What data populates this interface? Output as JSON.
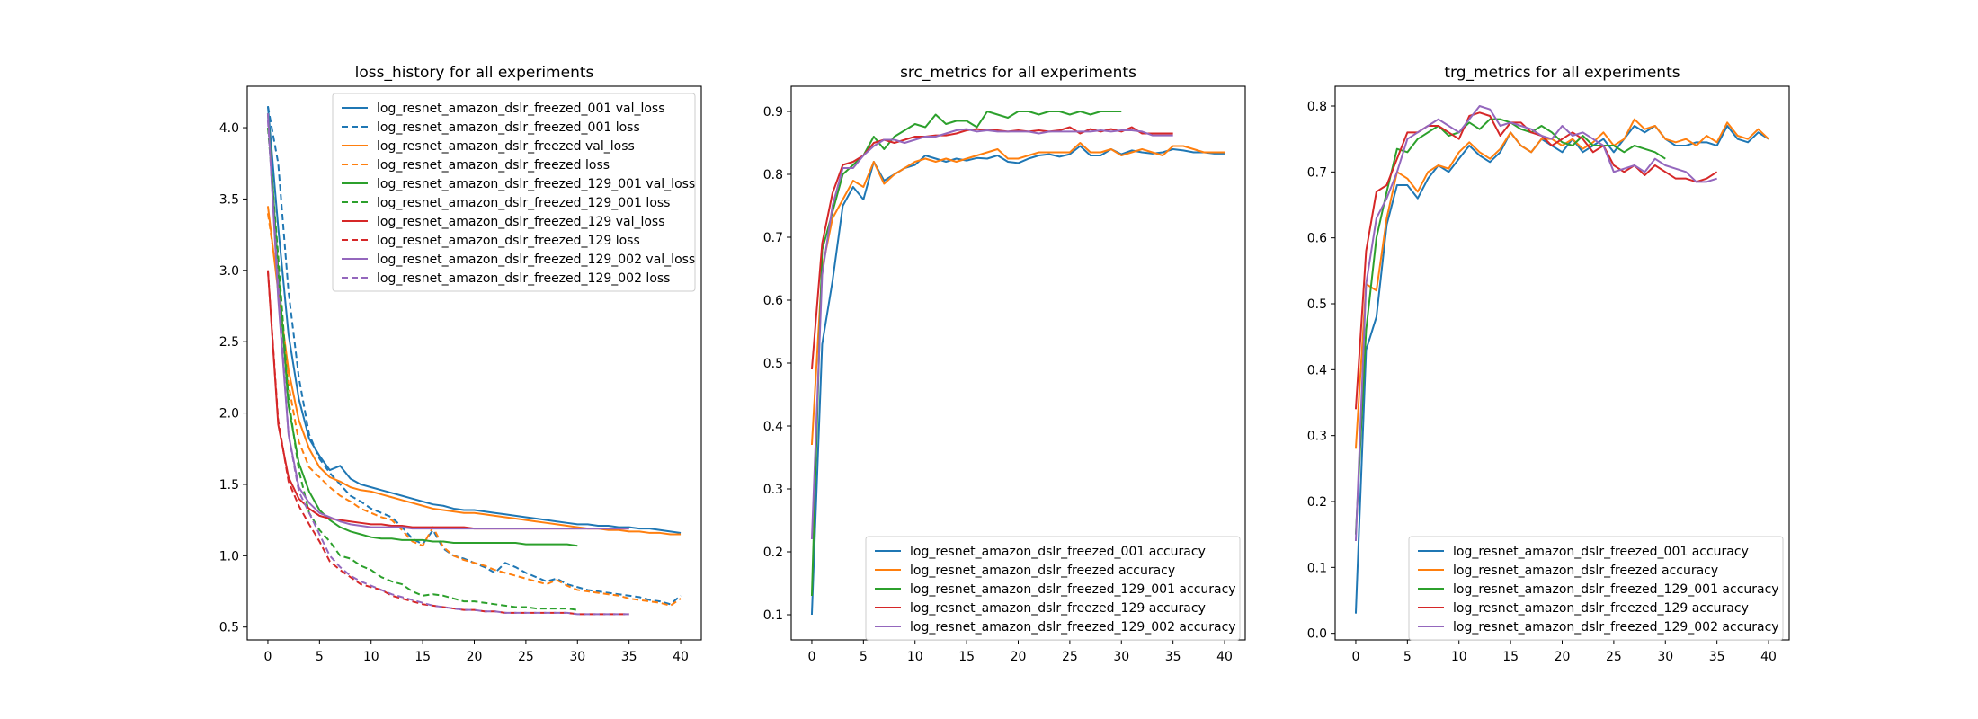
{
  "colors": {
    "blue": "#1f77b4",
    "orange": "#ff7f0e",
    "green": "#2ca02c",
    "red": "#d62728",
    "purple": "#9467bd"
  },
  "chart_data": [
    {
      "type": "line",
      "title": "loss_history for all experiments",
      "xlabel": "",
      "ylabel": "",
      "xlim": [
        -2,
        42
      ],
      "ylim": [
        0.41,
        4.29
      ],
      "xticks": [
        "0",
        "5",
        "10",
        "15",
        "20",
        "25",
        "30",
        "35",
        "40"
      ],
      "yticks": [
        "0.5",
        "1.0",
        "1.5",
        "2.0",
        "2.5",
        "3.0",
        "3.5",
        "4.0"
      ],
      "grid": false,
      "legend": "top-right",
      "series": [
        {
          "name": "log_resnet_amazon_dslr_freezed_001 val_loss",
          "color": "#1f77b4",
          "dash": false,
          "values": [
            4.15,
            3.3,
            2.55,
            2.1,
            1.82,
            1.7,
            1.6,
            1.63,
            1.54,
            1.5,
            1.48,
            1.46,
            1.44,
            1.42,
            1.4,
            1.38,
            1.36,
            1.35,
            1.33,
            1.32,
            1.32,
            1.31,
            1.3,
            1.29,
            1.28,
            1.27,
            1.26,
            1.25,
            1.24,
            1.23,
            1.22,
            1.22,
            1.21,
            1.21,
            1.2,
            1.2,
            1.19,
            1.19,
            1.18,
            1.17,
            1.16
          ]
        },
        {
          "name": "log_resnet_amazon_dslr_freezed_001 loss",
          "color": "#1f77b4",
          "dash": true,
          "values": [
            4.15,
            3.75,
            2.85,
            2.25,
            1.85,
            1.68,
            1.58,
            1.5,
            1.42,
            1.38,
            1.33,
            1.3,
            1.27,
            1.2,
            1.12,
            1.08,
            1.18,
            1.05,
            1.0,
            0.98,
            0.95,
            0.92,
            0.88,
            0.95,
            0.92,
            0.88,
            0.85,
            0.82,
            0.84,
            0.8,
            0.78,
            0.76,
            0.75,
            0.74,
            0.73,
            0.72,
            0.71,
            0.69,
            0.68,
            0.66,
            0.72
          ]
        },
        {
          "name": "log_resnet_amazon_dslr_freezed val_loss",
          "color": "#ff7f0e",
          "dash": false,
          "values": [
            3.45,
            2.85,
            2.3,
            1.95,
            1.75,
            1.62,
            1.55,
            1.52,
            1.48,
            1.46,
            1.45,
            1.43,
            1.41,
            1.39,
            1.37,
            1.35,
            1.33,
            1.32,
            1.31,
            1.3,
            1.3,
            1.29,
            1.28,
            1.27,
            1.26,
            1.25,
            1.24,
            1.23,
            1.22,
            1.21,
            1.2,
            1.19,
            1.19,
            1.18,
            1.18,
            1.17,
            1.17,
            1.16,
            1.16,
            1.15,
            1.15
          ]
        },
        {
          "name": "log_resnet_amazon_dslr_freezed loss",
          "color": "#ff7f0e",
          "dash": true,
          "values": [
            3.4,
            2.9,
            2.2,
            1.8,
            1.62,
            1.55,
            1.48,
            1.42,
            1.38,
            1.33,
            1.3,
            1.27,
            1.25,
            1.18,
            1.1,
            1.07,
            1.2,
            1.06,
            1.0,
            0.97,
            0.95,
            0.93,
            0.9,
            0.88,
            0.86,
            0.84,
            0.82,
            0.8,
            0.83,
            0.79,
            0.76,
            0.75,
            0.74,
            0.73,
            0.72,
            0.7,
            0.69,
            0.68,
            0.67,
            0.65,
            0.7
          ]
        },
        {
          "name": "log_resnet_amazon_dslr_freezed_129_001 val_loss",
          "color": "#2ca02c",
          "dash": false,
          "values": [
            4.1,
            3.0,
            2.05,
            1.65,
            1.45,
            1.32,
            1.25,
            1.2,
            1.17,
            1.15,
            1.13,
            1.12,
            1.12,
            1.11,
            1.11,
            1.11,
            1.1,
            1.1,
            1.09,
            1.09,
            1.09,
            1.09,
            1.09,
            1.09,
            1.09,
            1.08,
            1.08,
            1.08,
            1.08,
            1.08,
            1.07
          ]
        },
        {
          "name": "log_resnet_amazon_dslr_freezed_129_001 loss",
          "color": "#2ca02c",
          "dash": true,
          "values": [
            4.0,
            3.1,
            2.1,
            1.6,
            1.3,
            1.18,
            1.1,
            1.0,
            0.98,
            0.93,
            0.9,
            0.85,
            0.82,
            0.8,
            0.75,
            0.72,
            0.73,
            0.72,
            0.7,
            0.68,
            0.68,
            0.67,
            0.66,
            0.65,
            0.64,
            0.64,
            0.63,
            0.63,
            0.63,
            0.63,
            0.62
          ]
        },
        {
          "name": "log_resnet_amazon_dslr_freezed_129 val_loss",
          "color": "#d62728",
          "dash": false,
          "values": [
            3.0,
            1.92,
            1.55,
            1.4,
            1.33,
            1.28,
            1.26,
            1.25,
            1.24,
            1.23,
            1.22,
            1.22,
            1.21,
            1.21,
            1.2,
            1.2,
            1.2,
            1.2,
            1.2,
            1.2,
            1.19,
            1.19,
            1.19,
            1.19,
            1.19,
            1.19,
            1.19,
            1.19,
            1.19,
            1.19,
            1.19,
            1.19,
            1.19,
            1.19,
            1.19,
            1.19
          ]
        },
        {
          "name": "log_resnet_amazon_dslr_freezed_129 loss",
          "color": "#d62728",
          "dash": true,
          "values": [
            3.0,
            1.95,
            1.52,
            1.35,
            1.22,
            1.1,
            0.96,
            0.9,
            0.85,
            0.8,
            0.78,
            0.76,
            0.72,
            0.7,
            0.68,
            0.66,
            0.65,
            0.64,
            0.63,
            0.62,
            0.62,
            0.61,
            0.61,
            0.6,
            0.6,
            0.6,
            0.6,
            0.6,
            0.6,
            0.6,
            0.59,
            0.59,
            0.59,
            0.59,
            0.59,
            0.59
          ]
        },
        {
          "name": "log_resnet_amazon_dslr_freezed_129_002 val_loss",
          "color": "#9467bd",
          "dash": false,
          "values": [
            4.1,
            2.8,
            1.85,
            1.48,
            1.37,
            1.3,
            1.27,
            1.24,
            1.22,
            1.21,
            1.2,
            1.2,
            1.2,
            1.2,
            1.19,
            1.19,
            1.19,
            1.19,
            1.19,
            1.19,
            1.19,
            1.19,
            1.19,
            1.19,
            1.19,
            1.19,
            1.19,
            1.19,
            1.19,
            1.19,
            1.19,
            1.19,
            1.19,
            1.19,
            1.19,
            1.19
          ]
        },
        {
          "name": "log_resnet_amazon_dslr_freezed_129_002 loss",
          "color": "#9467bd",
          "dash": true,
          "values": [
            4.05,
            2.9,
            1.85,
            1.45,
            1.3,
            1.15,
            1.0,
            0.92,
            0.86,
            0.82,
            0.79,
            0.76,
            0.73,
            0.71,
            0.69,
            0.67,
            0.65,
            0.64,
            0.63,
            0.62,
            0.62,
            0.61,
            0.61,
            0.6,
            0.6,
            0.6,
            0.6,
            0.6,
            0.6,
            0.6,
            0.59,
            0.59,
            0.59,
            0.59,
            0.59,
            0.59
          ]
        }
      ]
    },
    {
      "type": "line",
      "title": "src_metrics for all experiments",
      "xlabel": "",
      "ylabel": "",
      "xlim": [
        -2,
        42
      ],
      "ylim": [
        0.06,
        0.94
      ],
      "xticks": [
        "0",
        "5",
        "10",
        "15",
        "20",
        "25",
        "30",
        "35",
        "40"
      ],
      "yticks": [
        "0.1",
        "0.2",
        "0.3",
        "0.4",
        "0.5",
        "0.6",
        "0.7",
        "0.8",
        "0.9"
      ],
      "grid": false,
      "legend": "bottom-right",
      "series": [
        {
          "name": "log_resnet_amazon_dslr_freezed_001 accuracy",
          "color": "#1f77b4",
          "values": [
            0.1,
            0.53,
            0.63,
            0.75,
            0.78,
            0.76,
            0.82,
            0.79,
            0.8,
            0.81,
            0.815,
            0.83,
            0.825,
            0.82,
            0.825,
            0.822,
            0.826,
            0.825,
            0.83,
            0.82,
            0.818,
            0.825,
            0.83,
            0.832,
            0.828,
            0.832,
            0.845,
            0.83,
            0.83,
            0.84,
            0.832,
            0.838,
            0.835,
            0.833,
            0.835,
            0.84,
            0.838,
            0.835,
            0.835,
            0.833,
            0.833
          ]
        },
        {
          "name": "log_resnet_amazon_dslr_freezed accuracy",
          "color": "#ff7f0e",
          "values": [
            0.37,
            0.65,
            0.73,
            0.76,
            0.79,
            0.78,
            0.82,
            0.785,
            0.8,
            0.81,
            0.82,
            0.825,
            0.82,
            0.825,
            0.82,
            0.825,
            0.83,
            0.835,
            0.84,
            0.825,
            0.825,
            0.83,
            0.835,
            0.835,
            0.835,
            0.835,
            0.85,
            0.835,
            0.835,
            0.84,
            0.83,
            0.835,
            0.84,
            0.835,
            0.83,
            0.845,
            0.845,
            0.84,
            0.835,
            0.835,
            0.835
          ]
        },
        {
          "name": "log_resnet_amazon_dslr_freezed_129_001 accuracy",
          "color": "#2ca02c",
          "values": [
            0.13,
            0.68,
            0.74,
            0.8,
            0.815,
            0.83,
            0.86,
            0.84,
            0.86,
            0.87,
            0.88,
            0.875,
            0.895,
            0.88,
            0.885,
            0.885,
            0.875,
            0.9,
            0.895,
            0.89,
            0.9,
            0.9,
            0.895,
            0.9,
            0.9,
            0.895,
            0.9,
            0.895,
            0.9,
            0.9,
            0.9
          ]
        },
        {
          "name": "log_resnet_amazon_dslr_freezed_129 accuracy",
          "color": "#d62728",
          "values": [
            0.49,
            0.69,
            0.77,
            0.815,
            0.82,
            0.83,
            0.85,
            0.855,
            0.85,
            0.855,
            0.86,
            0.86,
            0.862,
            0.862,
            0.865,
            0.87,
            0.872,
            0.87,
            0.87,
            0.868,
            0.87,
            0.868,
            0.87,
            0.868,
            0.87,
            0.875,
            0.865,
            0.872,
            0.868,
            0.872,
            0.868,
            0.875,
            0.865,
            0.865,
            0.865,
            0.865
          ]
        },
        {
          "name": "log_resnet_amazon_dslr_freezed_129_002 accuracy",
          "color": "#9467bd",
          "values": [
            0.22,
            0.64,
            0.75,
            0.81,
            0.81,
            0.83,
            0.845,
            0.855,
            0.855,
            0.85,
            0.855,
            0.86,
            0.86,
            0.865,
            0.87,
            0.872,
            0.868,
            0.87,
            0.868,
            0.868,
            0.868,
            0.868,
            0.865,
            0.868,
            0.868,
            0.868,
            0.868,
            0.868,
            0.87,
            0.868,
            0.87,
            0.87,
            0.868,
            0.862,
            0.862,
            0.862
          ]
        }
      ]
    },
    {
      "type": "line",
      "title": "trg_metrics for all experiments",
      "xlabel": "",
      "ylabel": "",
      "xlim": [
        -2,
        42
      ],
      "ylim": [
        -0.01,
        0.83
      ],
      "xticks": [
        "0",
        "5",
        "10",
        "15",
        "20",
        "25",
        "30",
        "35",
        "40"
      ],
      "yticks": [
        "0.0",
        "0.1",
        "0.2",
        "0.3",
        "0.4",
        "0.5",
        "0.6",
        "0.7",
        "0.8"
      ],
      "grid": false,
      "legend": "bottom-right",
      "series": [
        {
          "name": "log_resnet_amazon_dslr_freezed_001 accuracy",
          "color": "#1f77b4",
          "values": [
            0.03,
            0.43,
            0.48,
            0.62,
            0.68,
            0.68,
            0.66,
            0.69,
            0.71,
            0.7,
            0.72,
            0.74,
            0.725,
            0.715,
            0.73,
            0.76,
            0.74,
            0.73,
            0.75,
            0.74,
            0.73,
            0.75,
            0.73,
            0.74,
            0.75,
            0.73,
            0.75,
            0.77,
            0.76,
            0.77,
            0.75,
            0.74,
            0.74,
            0.745,
            0.745,
            0.74,
            0.77,
            0.75,
            0.745,
            0.76,
            0.75
          ]
        },
        {
          "name": "log_resnet_amazon_dslr_freezed accuracy",
          "color": "#ff7f0e",
          "values": [
            0.28,
            0.53,
            0.52,
            0.63,
            0.7,
            0.69,
            0.67,
            0.7,
            0.71,
            0.705,
            0.73,
            0.745,
            0.73,
            0.72,
            0.735,
            0.76,
            0.74,
            0.73,
            0.75,
            0.75,
            0.74,
            0.75,
            0.735,
            0.745,
            0.76,
            0.74,
            0.75,
            0.78,
            0.765,
            0.77,
            0.75,
            0.745,
            0.75,
            0.74,
            0.755,
            0.745,
            0.775,
            0.755,
            0.75,
            0.765,
            0.75
          ]
        },
        {
          "name": "log_resnet_amazon_dslr_freezed_129_001 accuracy",
          "color": "#2ca02c",
          "values": [
            0.15,
            0.46,
            0.6,
            0.67,
            0.735,
            0.73,
            0.75,
            0.76,
            0.77,
            0.755,
            0.76,
            0.775,
            0.765,
            0.78,
            0.78,
            0.775,
            0.765,
            0.76,
            0.77,
            0.76,
            0.745,
            0.74,
            0.755,
            0.74,
            0.74,
            0.74,
            0.73,
            0.74,
            0.735,
            0.73,
            0.72
          ]
        },
        {
          "name": "log_resnet_amazon_dslr_freezed_129 accuracy",
          "color": "#d62728",
          "values": [
            0.34,
            0.58,
            0.67,
            0.68,
            0.72,
            0.76,
            0.76,
            0.77,
            0.77,
            0.76,
            0.75,
            0.785,
            0.79,
            0.785,
            0.755,
            0.775,
            0.775,
            0.76,
            0.755,
            0.74,
            0.75,
            0.76,
            0.75,
            0.73,
            0.74,
            0.71,
            0.7,
            0.71,
            0.695,
            0.71,
            0.7,
            0.69,
            0.69,
            0.685,
            0.69,
            0.7
          ]
        },
        {
          "name": "log_resnet_amazon_dslr_freezed_129_002 accuracy",
          "color": "#9467bd",
          "values": [
            0.14,
            0.53,
            0.63,
            0.66,
            0.7,
            0.75,
            0.76,
            0.77,
            0.78,
            0.77,
            0.76,
            0.78,
            0.8,
            0.795,
            0.77,
            0.775,
            0.77,
            0.765,
            0.755,
            0.75,
            0.77,
            0.755,
            0.76,
            0.75,
            0.74,
            0.7,
            0.705,
            0.71,
            0.7,
            0.72,
            0.71,
            0.705,
            0.7,
            0.685,
            0.685,
            0.69
          ]
        }
      ]
    }
  ]
}
